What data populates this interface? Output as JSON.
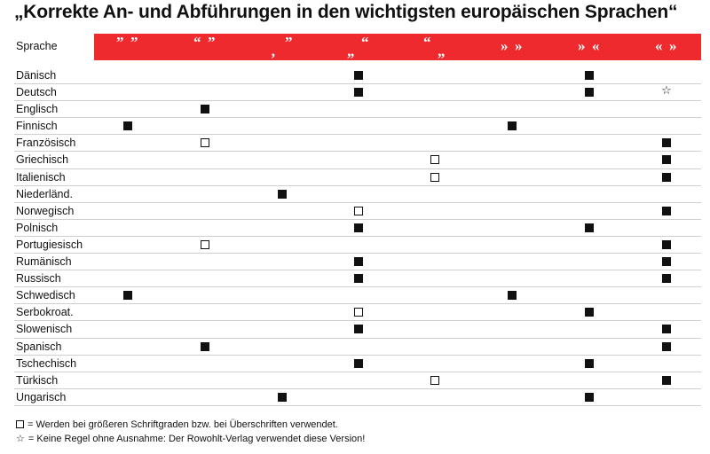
{
  "title": "„Korrekte An- und Abführungen in den wichtigsten europäischen Sprachen“",
  "header_label": "Sprache",
  "quote_styles": [
    {
      "open": "”",
      "close": "”"
    },
    {
      "open": "“",
      "close": "”"
    },
    {
      "open": "‚",
      "close": "”"
    },
    {
      "open": "„",
      "close": "“"
    },
    {
      "open": "“",
      "close": "„"
    },
    {
      "open": "»",
      "close": "»"
    },
    {
      "open": "»",
      "close": "«"
    },
    {
      "open": "«",
      "close": "»"
    }
  ],
  "mark_legend": {
    "filled": "■",
    "open": "□",
    "star": "☆"
  },
  "languages": [
    {
      "name": "Dänisch",
      "marks": {
        "3": "filled",
        "6": "filled"
      }
    },
    {
      "name": "Deutsch",
      "marks": {
        "3": "filled",
        "6": "filled",
        "7": "star"
      }
    },
    {
      "name": "Englisch",
      "marks": {
        "1": "filled"
      }
    },
    {
      "name": "Finnisch",
      "marks": {
        "0": "filled",
        "5": "filled"
      }
    },
    {
      "name": "Französisch",
      "marks": {
        "1": "open",
        "7": "filled"
      }
    },
    {
      "name": "Griechisch",
      "marks": {
        "4": "open",
        "7": "filled"
      }
    },
    {
      "name": "Italienisch",
      "marks": {
        "4": "open",
        "7": "filled"
      }
    },
    {
      "name": "Niederländ.",
      "marks": {
        "2": "filled"
      }
    },
    {
      "name": "Norwegisch",
      "marks": {
        "3": "open",
        "7": "filled"
      }
    },
    {
      "name": "Polnisch",
      "marks": {
        "3": "filled",
        "6": "filled"
      }
    },
    {
      "name": "Portugiesisch",
      "marks": {
        "1": "open",
        "7": "filled"
      }
    },
    {
      "name": "Rumänisch",
      "marks": {
        "3": "filled",
        "7": "filled"
      }
    },
    {
      "name": "Russisch",
      "marks": {
        "3": "filled",
        "7": "filled"
      }
    },
    {
      "name": "Schwedisch",
      "marks": {
        "0": "filled",
        "5": "filled"
      }
    },
    {
      "name": "Serbokroat.",
      "marks": {
        "3": "open",
        "6": "filled"
      }
    },
    {
      "name": "Slowenisch",
      "marks": {
        "3": "filled",
        "7": "filled"
      }
    },
    {
      "name": "Spanisch",
      "marks": {
        "1": "filled",
        "7": "filled"
      }
    },
    {
      "name": "Tschechisch",
      "marks": {
        "3": "filled",
        "6": "filled"
      }
    },
    {
      "name": "Türkisch",
      "marks": {
        "4": "open",
        "7": "filled"
      }
    },
    {
      "name": "Ungarisch",
      "marks": {
        "2": "filled",
        "6": "filled"
      }
    }
  ],
  "legend": {
    "open_text": "= Werden bei größeren Schriftgraden bzw. bei Überschriften verwendet.",
    "star_text": "= Keine Regel ohne Ausnahme: Der Rowohlt-Verlag verwendet diese Version!"
  },
  "colors": {
    "header_bar": "#ee2a2e",
    "text": "#111111"
  }
}
